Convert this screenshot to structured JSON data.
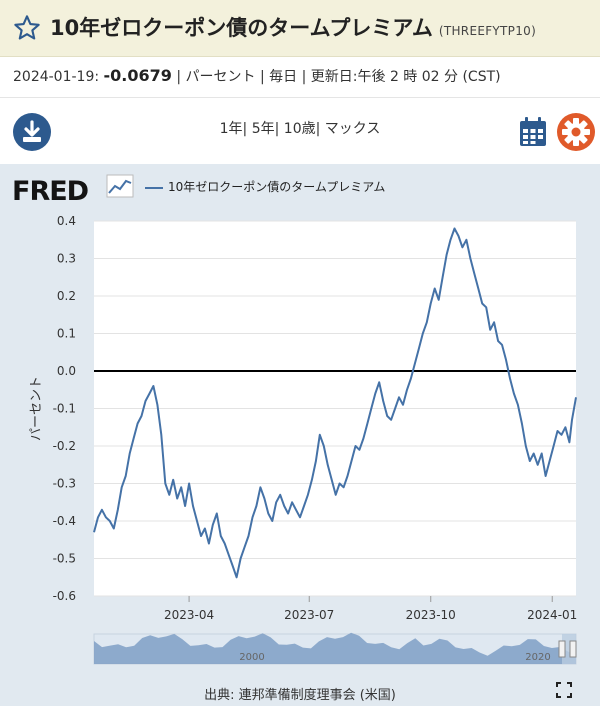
{
  "header": {
    "title": "10年ゼロクーポン債のタームプレミアム",
    "series_id": "(THREEFYTP10)"
  },
  "info": {
    "date": "2024-01-19:",
    "value": "-0.0679",
    "rest": "| パーセント | 毎日 | 更新日:午後 2 時 02 分 (CST)"
  },
  "ranges": [
    "1年",
    "5年",
    "10歳",
    "マックス"
  ],
  "icons": {
    "favorite": "star-icon",
    "download": "download-icon",
    "calendar": "calendar-icon",
    "settings": "gear-icon",
    "fullscreen": "fullscreen-icon"
  },
  "colors": {
    "line": "#4572a7",
    "accent": "#2d5a8e",
    "settings": "#e05a2a",
    "panel": "#e1e9f0"
  },
  "logo": "FRED",
  "source": "出典: 連邦準備制度理事会 (米国)",
  "chart_data": {
    "type": "line",
    "title": "",
    "ylabel": "パーセント",
    "ylim": [
      -0.6,
      0.4
    ],
    "yticks": [
      "0.4",
      "0.3",
      "0.2",
      "0.1",
      "0.0",
      "-0.1",
      "-0.2",
      "-0.3",
      "-0.4",
      "-0.5",
      "-0.6"
    ],
    "xticks": [
      {
        "date": "2023-04-01",
        "label": "2023-04"
      },
      {
        "date": "2023-07-01",
        "label": "2023-07"
      },
      {
        "date": "2023-10-01",
        "label": "2023-10"
      },
      {
        "date": "2024-01-01",
        "label": "2024-01"
      }
    ],
    "xlim": [
      "2023-01-19",
      "2024-01-19"
    ],
    "reference_line": 0,
    "legend": "top-left",
    "series": [
      {
        "name": "10年ゼロクーポン債のタームプレミアム",
        "points": [
          [
            "2023-01-19",
            -0.43
          ],
          [
            "2023-01-22",
            -0.39
          ],
          [
            "2023-01-25",
            -0.37
          ],
          [
            "2023-01-28",
            -0.39
          ],
          [
            "2023-01-31",
            -0.4
          ],
          [
            "2023-02-03",
            -0.42
          ],
          [
            "2023-02-06",
            -0.37
          ],
          [
            "2023-02-09",
            -0.31
          ],
          [
            "2023-02-12",
            -0.28
          ],
          [
            "2023-02-15",
            -0.22
          ],
          [
            "2023-02-18",
            -0.18
          ],
          [
            "2023-02-21",
            -0.14
          ],
          [
            "2023-02-24",
            -0.12
          ],
          [
            "2023-02-27",
            -0.08
          ],
          [
            "2023-03-02",
            -0.06
          ],
          [
            "2023-03-05",
            -0.04
          ],
          [
            "2023-03-08",
            -0.09
          ],
          [
            "2023-03-11",
            -0.17
          ],
          [
            "2023-03-14",
            -0.3
          ],
          [
            "2023-03-17",
            -0.33
          ],
          [
            "2023-03-20",
            -0.29
          ],
          [
            "2023-03-23",
            -0.34
          ],
          [
            "2023-03-26",
            -0.31
          ],
          [
            "2023-03-29",
            -0.36
          ],
          [
            "2023-04-01",
            -0.3
          ],
          [
            "2023-04-04",
            -0.36
          ],
          [
            "2023-04-07",
            -0.4
          ],
          [
            "2023-04-10",
            -0.44
          ],
          [
            "2023-04-13",
            -0.42
          ],
          [
            "2023-04-16",
            -0.46
          ],
          [
            "2023-04-19",
            -0.41
          ],
          [
            "2023-04-22",
            -0.38
          ],
          [
            "2023-04-25",
            -0.44
          ],
          [
            "2023-04-28",
            -0.46
          ],
          [
            "2023-05-01",
            -0.49
          ],
          [
            "2023-05-04",
            -0.52
          ],
          [
            "2023-05-07",
            -0.55
          ],
          [
            "2023-05-10",
            -0.5
          ],
          [
            "2023-05-13",
            -0.47
          ],
          [
            "2023-05-16",
            -0.44
          ],
          [
            "2023-05-19",
            -0.39
          ],
          [
            "2023-05-22",
            -0.36
          ],
          [
            "2023-05-25",
            -0.31
          ],
          [
            "2023-05-28",
            -0.34
          ],
          [
            "2023-05-31",
            -0.38
          ],
          [
            "2023-06-03",
            -0.4
          ],
          [
            "2023-06-06",
            -0.35
          ],
          [
            "2023-06-09",
            -0.33
          ],
          [
            "2023-06-12",
            -0.36
          ],
          [
            "2023-06-15",
            -0.38
          ],
          [
            "2023-06-18",
            -0.35
          ],
          [
            "2023-06-21",
            -0.37
          ],
          [
            "2023-06-24",
            -0.39
          ],
          [
            "2023-06-27",
            -0.36
          ],
          [
            "2023-06-30",
            -0.33
          ],
          [
            "2023-07-03",
            -0.29
          ],
          [
            "2023-07-06",
            -0.24
          ],
          [
            "2023-07-09",
            -0.17
          ],
          [
            "2023-07-12",
            -0.2
          ],
          [
            "2023-07-15",
            -0.25
          ],
          [
            "2023-07-18",
            -0.29
          ],
          [
            "2023-07-21",
            -0.33
          ],
          [
            "2023-07-24",
            -0.3
          ],
          [
            "2023-07-27",
            -0.31
          ],
          [
            "2023-07-30",
            -0.28
          ],
          [
            "2023-08-02",
            -0.24
          ],
          [
            "2023-08-05",
            -0.2
          ],
          [
            "2023-08-08",
            -0.21
          ],
          [
            "2023-08-11",
            -0.18
          ],
          [
            "2023-08-14",
            -0.14
          ],
          [
            "2023-08-17",
            -0.1
          ],
          [
            "2023-08-20",
            -0.06
          ],
          [
            "2023-08-23",
            -0.03
          ],
          [
            "2023-08-26",
            -0.08
          ],
          [
            "2023-08-29",
            -0.12
          ],
          [
            "2023-09-01",
            -0.13
          ],
          [
            "2023-09-04",
            -0.1
          ],
          [
            "2023-09-07",
            -0.07
          ],
          [
            "2023-09-10",
            -0.09
          ],
          [
            "2023-09-13",
            -0.05
          ],
          [
            "2023-09-16",
            -0.02
          ],
          [
            "2023-09-19",
            0.02
          ],
          [
            "2023-09-22",
            0.06
          ],
          [
            "2023-09-25",
            0.1
          ],
          [
            "2023-09-28",
            0.13
          ],
          [
            "2023-10-01",
            0.18
          ],
          [
            "2023-10-04",
            0.22
          ],
          [
            "2023-10-07",
            0.19
          ],
          [
            "2023-10-10",
            0.25
          ],
          [
            "2023-10-13",
            0.31
          ],
          [
            "2023-10-16",
            0.35
          ],
          [
            "2023-10-19",
            0.38
          ],
          [
            "2023-10-22",
            0.36
          ],
          [
            "2023-10-25",
            0.33
          ],
          [
            "2023-10-28",
            0.35
          ],
          [
            "2023-10-31",
            0.3
          ],
          [
            "2023-11-03",
            0.26
          ],
          [
            "2023-11-06",
            0.22
          ],
          [
            "2023-11-09",
            0.18
          ],
          [
            "2023-11-12",
            0.17
          ],
          [
            "2023-11-15",
            0.11
          ],
          [
            "2023-11-18",
            0.13
          ],
          [
            "2023-11-21",
            0.08
          ],
          [
            "2023-11-24",
            0.07
          ],
          [
            "2023-11-27",
            0.03
          ],
          [
            "2023-11-30",
            -0.02
          ],
          [
            "2023-12-03",
            -0.06
          ],
          [
            "2023-12-06",
            -0.09
          ],
          [
            "2023-12-09",
            -0.14
          ],
          [
            "2023-12-12",
            -0.2
          ],
          [
            "2023-12-15",
            -0.24
          ],
          [
            "2023-12-18",
            -0.22
          ],
          [
            "2023-12-21",
            -0.25
          ],
          [
            "2023-12-24",
            -0.22
          ],
          [
            "2023-12-27",
            -0.28
          ],
          [
            "2023-12-30",
            -0.24
          ],
          [
            "2024-01-02",
            -0.2
          ],
          [
            "2024-01-05",
            -0.16
          ],
          [
            "2024-01-08",
            -0.17
          ],
          [
            "2024-01-11",
            -0.15
          ],
          [
            "2024-01-14",
            -0.19
          ],
          [
            "2024-01-16",
            -0.13
          ],
          [
            "2024-01-19",
            -0.07
          ]
        ]
      }
    ],
    "navigator": {
      "labels": [
        "2000",
        "2020"
      ]
    }
  }
}
